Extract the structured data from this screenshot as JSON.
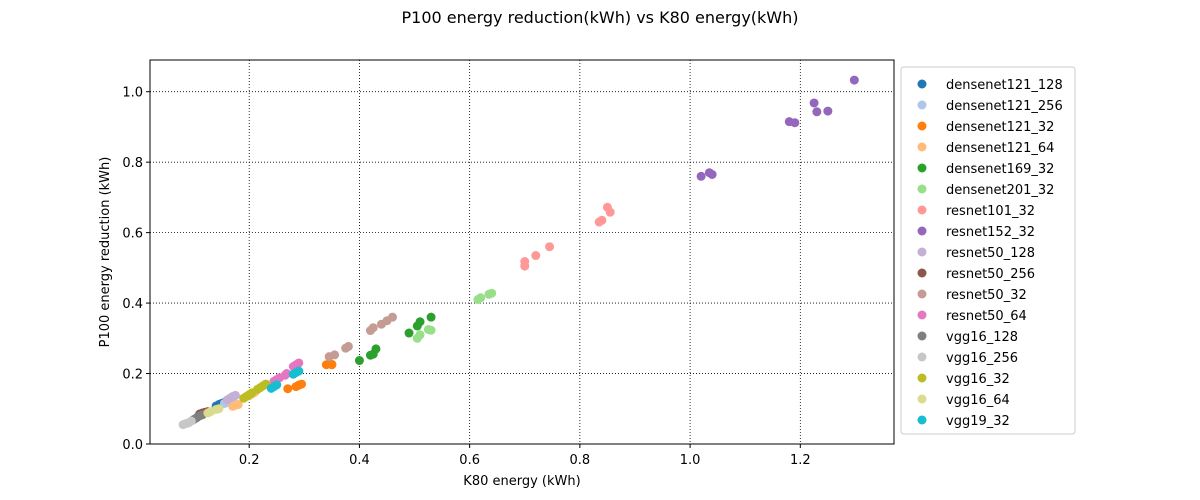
{
  "chart_data": {
    "type": "scatter",
    "title": "P100 energy reduction(kWh) vs K80 energy(kWh)",
    "xlabel": "K80 energy (kWh)",
    "ylabel": "P100 energy reduction (kWh)",
    "xlim": [
      0.02,
      1.37
    ],
    "ylim": [
      0.0,
      1.09
    ],
    "xticks": [
      0.2,
      0.4,
      0.6,
      0.8,
      1.0,
      1.2
    ],
    "xtick_labels": [
      "0.2",
      "0.4",
      "0.6",
      "0.8",
      "1.0",
      "1.2"
    ],
    "yticks": [
      0.0,
      0.2,
      0.4,
      0.6,
      0.8,
      1.0
    ],
    "ytick_labels": [
      "0.0",
      "0.2",
      "0.4",
      "0.6",
      "0.8",
      "1.0"
    ],
    "grid": true,
    "legend_position": "outside-right",
    "series": [
      {
        "name": "densenet121_128",
        "color": "#1f77b4",
        "points": [
          [
            0.145,
            0.112
          ],
          [
            0.15,
            0.115
          ],
          [
            0.155,
            0.118
          ],
          [
            0.14,
            0.108
          ]
        ]
      },
      {
        "name": "densenet121_256",
        "color": "#aec7e8",
        "points": [
          [
            0.16,
            0.118
          ],
          [
            0.165,
            0.122
          ],
          [
            0.17,
            0.127
          ],
          [
            0.155,
            0.115
          ]
        ]
      },
      {
        "name": "densenet121_32",
        "color": "#ff7f0e",
        "points": [
          [
            0.27,
            0.157
          ],
          [
            0.285,
            0.163
          ],
          [
            0.29,
            0.167
          ],
          [
            0.295,
            0.17
          ],
          [
            0.34,
            0.225
          ],
          [
            0.345,
            0.228
          ],
          [
            0.35,
            0.225
          ],
          [
            0.35,
            0.226
          ]
        ]
      },
      {
        "name": "densenet121_64",
        "color": "#ffbb78",
        "points": [
          [
            0.17,
            0.107
          ],
          [
            0.175,
            0.11
          ],
          [
            0.18,
            0.112
          ],
          [
            0.2,
            0.137
          ],
          [
            0.205,
            0.142
          ],
          [
            0.21,
            0.147
          ]
        ]
      },
      {
        "name": "densenet169_32",
        "color": "#2ca02c",
        "points": [
          [
            0.4,
            0.237
          ],
          [
            0.42,
            0.252
          ],
          [
            0.425,
            0.255
          ],
          [
            0.43,
            0.27
          ],
          [
            0.49,
            0.315
          ],
          [
            0.505,
            0.335
          ],
          [
            0.51,
            0.347
          ],
          [
            0.53,
            0.36
          ]
        ]
      },
      {
        "name": "densenet201_32",
        "color": "#98df8a",
        "points": [
          [
            0.505,
            0.3
          ],
          [
            0.51,
            0.31
          ],
          [
            0.525,
            0.325
          ],
          [
            0.53,
            0.323
          ],
          [
            0.615,
            0.41
          ],
          [
            0.62,
            0.415
          ],
          [
            0.635,
            0.425
          ],
          [
            0.64,
            0.428
          ]
        ]
      },
      {
        "name": "resnet101_32",
        "color": "#ff9896",
        "points": [
          [
            0.7,
            0.505
          ],
          [
            0.7,
            0.518
          ],
          [
            0.72,
            0.535
          ],
          [
            0.745,
            0.56
          ],
          [
            0.835,
            0.63
          ],
          [
            0.84,
            0.635
          ],
          [
            0.85,
            0.672
          ],
          [
            0.855,
            0.658
          ]
        ]
      },
      {
        "name": "resnet152_32",
        "color": "#9467bd",
        "points": [
          [
            1.02,
            0.76
          ],
          [
            1.035,
            0.77
          ],
          [
            1.04,
            0.765
          ],
          [
            1.18,
            0.915
          ],
          [
            1.19,
            0.912
          ],
          [
            1.225,
            0.968
          ],
          [
            1.23,
            0.943
          ],
          [
            1.25,
            0.945
          ],
          [
            1.298,
            1.033
          ]
        ]
      },
      {
        "name": "resnet50_128",
        "color": "#c5b0d5",
        "points": [
          [
            0.16,
            0.125
          ],
          [
            0.165,
            0.13
          ],
          [
            0.17,
            0.135
          ],
          [
            0.175,
            0.138
          ]
        ]
      },
      {
        "name": "resnet50_256",
        "color": "#8c564b",
        "points": [
          [
            0.11,
            0.085
          ],
          [
            0.115,
            0.088
          ],
          [
            0.12,
            0.09
          ],
          [
            0.125,
            0.092
          ]
        ]
      },
      {
        "name": "resnet50_32",
        "color": "#c49c94",
        "points": [
          [
            0.345,
            0.248
          ],
          [
            0.355,
            0.253
          ],
          [
            0.375,
            0.272
          ],
          [
            0.38,
            0.277
          ],
          [
            0.42,
            0.322
          ],
          [
            0.425,
            0.33
          ],
          [
            0.44,
            0.34
          ],
          [
            0.45,
            0.35
          ],
          [
            0.46,
            0.36
          ]
        ]
      },
      {
        "name": "resnet50_64",
        "color": "#e377c2",
        "points": [
          [
            0.245,
            0.178
          ],
          [
            0.25,
            0.183
          ],
          [
            0.255,
            0.188
          ],
          [
            0.265,
            0.195
          ],
          [
            0.268,
            0.2
          ],
          [
            0.285,
            0.225
          ],
          [
            0.29,
            0.23
          ],
          [
            0.28,
            0.22
          ]
        ]
      },
      {
        "name": "vgg16_128",
        "color": "#7f7f7f",
        "points": [
          [
            0.1,
            0.07
          ],
          [
            0.105,
            0.075
          ],
          [
            0.11,
            0.08
          ],
          [
            0.115,
            0.083
          ]
        ]
      },
      {
        "name": "vgg16_256",
        "color": "#c7c7c7",
        "points": [
          [
            0.08,
            0.055
          ],
          [
            0.085,
            0.058
          ],
          [
            0.09,
            0.06
          ],
          [
            0.095,
            0.065
          ]
        ]
      },
      {
        "name": "vgg16_32",
        "color": "#bcbd22",
        "points": [
          [
            0.19,
            0.13
          ],
          [
            0.195,
            0.135
          ],
          [
            0.2,
            0.14
          ],
          [
            0.205,
            0.145
          ],
          [
            0.215,
            0.155
          ],
          [
            0.22,
            0.16
          ],
          [
            0.225,
            0.165
          ],
          [
            0.23,
            0.17
          ]
        ]
      },
      {
        "name": "vgg16_64",
        "color": "#dbdb8d",
        "points": [
          [
            0.125,
            0.088
          ],
          [
            0.13,
            0.092
          ],
          [
            0.14,
            0.098
          ],
          [
            0.145,
            0.1
          ]
        ]
      },
      {
        "name": "vgg19_32",
        "color": "#17becf",
        "points": [
          [
            0.24,
            0.158
          ],
          [
            0.245,
            0.163
          ],
          [
            0.25,
            0.168
          ],
          [
            0.28,
            0.198
          ],
          [
            0.285,
            0.203
          ],
          [
            0.29,
            0.207
          ]
        ]
      }
    ]
  }
}
